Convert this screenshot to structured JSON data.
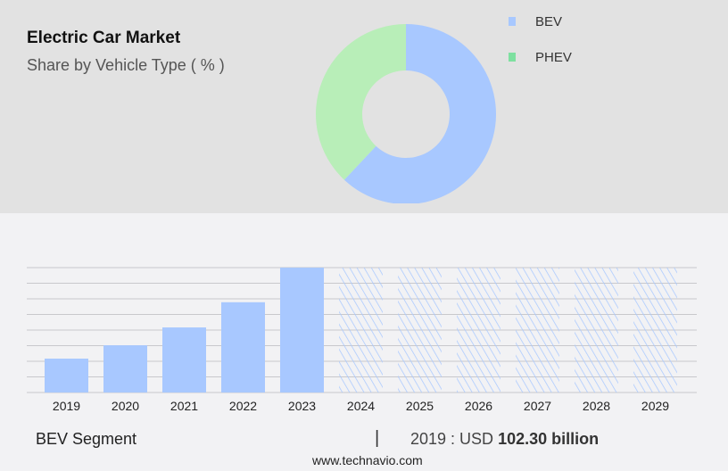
{
  "header": {
    "title": "Electric Car Market",
    "subtitle": "Share by Vehicle Type ( % )"
  },
  "chart_data": [
    {
      "type": "pie",
      "donut": true,
      "categories": [
        "BEV",
        "PHEV"
      ],
      "values": [
        62,
        38
      ],
      "colors": [
        "#a8c8ff",
        "#b8eeb8"
      ],
      "legend_colors": [
        "#a8c8ff",
        "#7ee0a0"
      ],
      "legend": "top-right"
    },
    {
      "type": "bar",
      "categories": [
        "2019",
        "2020",
        "2021",
        "2022",
        "2023",
        "2024",
        "2025",
        "2026",
        "2027",
        "2028",
        "2029"
      ],
      "values": [
        102.3,
        142.6,
        196.5,
        272.6,
        377.2,
        377.2,
        377.2,
        377.2,
        377.2,
        377.2,
        377.2
      ],
      "forecast": [
        false,
        false,
        false,
        false,
        false,
        true,
        true,
        true,
        true,
        true,
        true
      ],
      "ylim": [
        0,
        377.2
      ],
      "grid": true,
      "color": "#a8c8ff"
    }
  ],
  "footer": {
    "segment": "BEV Segment",
    "separator": "|",
    "year_label": "2019 : USD",
    "value": "102.30 billion",
    "site": "www.technavio.com"
  }
}
